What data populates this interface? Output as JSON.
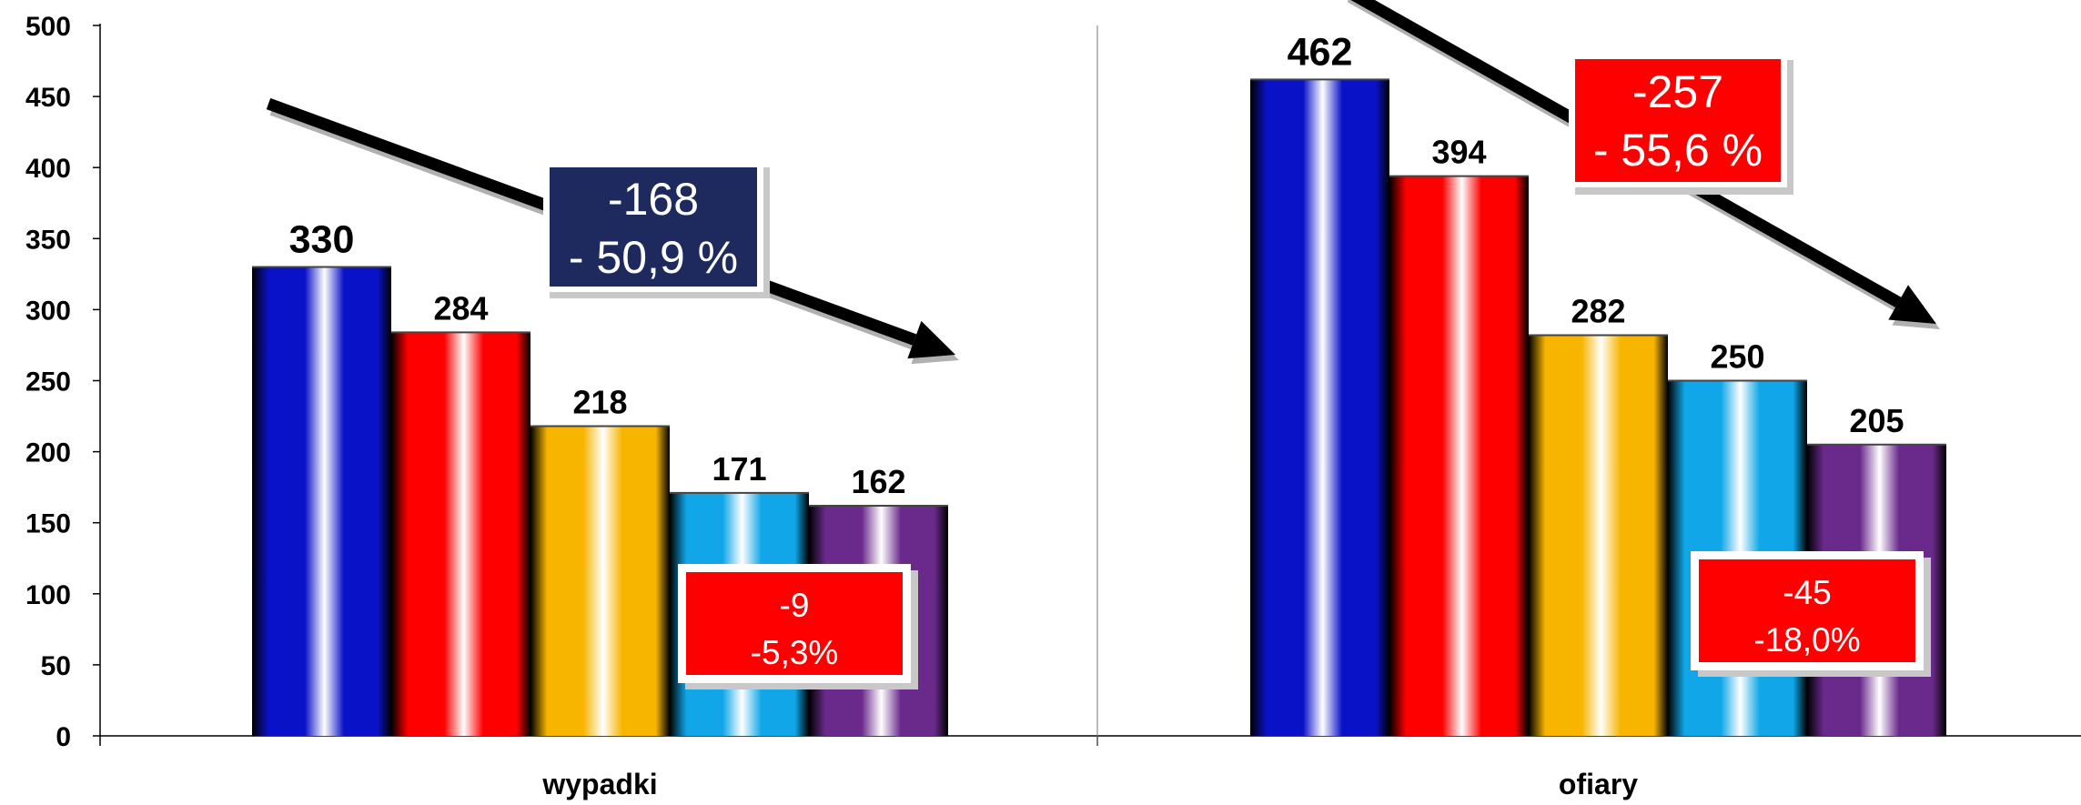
{
  "chart_data": {
    "type": "bar",
    "categories": [
      "wypadki",
      "ofiary"
    ],
    "series": [
      {
        "values": [
          330,
          462
        ],
        "color": "#0a12c8"
      },
      {
        "values": [
          284,
          394
        ],
        "color": "#ff0000"
      },
      {
        "values": [
          218,
          282
        ],
        "color": "#f7b500"
      },
      {
        "values": [
          171,
          250
        ],
        "color": "#10a6e8"
      },
      {
        "values": [
          162,
          205
        ],
        "color": "#6a2a8c"
      }
    ],
    "ylim": [
      0,
      500
    ],
    "yticks": [
      "0",
      "50",
      "100",
      "150",
      "200",
      "250",
      "300",
      "350",
      "400",
      "450",
      "500"
    ],
    "xlabel": "",
    "ylabel": "",
    "title": "",
    "grid": false,
    "legend": "none",
    "annotations": {
      "wypadki_total": {
        "line1": "-168",
        "line2": "- 50,9 %",
        "bg": "#1e2a5e"
      },
      "wypadki_last": {
        "line1": "-9",
        "line2": "-5,3%",
        "bg": "#ff0000"
      },
      "ofiary_total": {
        "line1": "-257",
        "line2": "- 55,6 %",
        "bg": "#ff0000"
      },
      "ofiary_last": {
        "line1": "-45",
        "line2": "-18,0%",
        "bg": "#ff0000"
      }
    }
  }
}
